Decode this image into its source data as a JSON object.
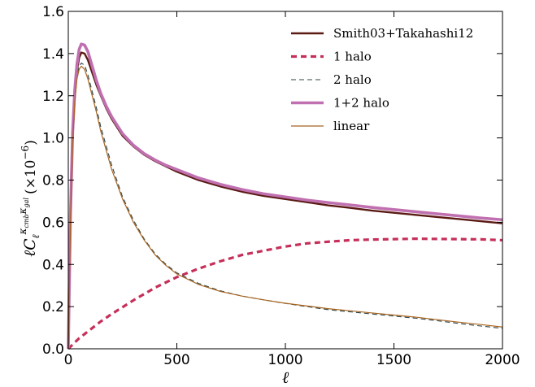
{
  "chart_data": {
    "type": "line",
    "xlabel": "ℓ",
    "ylabel": {
      "prefix": "ℓC",
      "subscript": "ℓ",
      "superscript": "κ",
      "sup_sub1": "cmb",
      "sup_mid": "κ",
      "sup_sub2": "gal",
      "suffix": "(×10",
      "exponent": "−6",
      "close": ")"
    },
    "xlim": [
      0,
      2000
    ],
    "ylim": [
      0.0,
      1.6
    ],
    "xticks": [
      0,
      500,
      1000,
      1500,
      2000
    ],
    "xtick_labels": [
      "0",
      "500",
      "1000",
      "1500",
      "2000"
    ],
    "yticks": [
      0.0,
      0.2,
      0.4,
      0.6,
      0.8,
      1.0,
      1.2,
      1.4,
      1.6
    ],
    "ytick_labels": [
      "0.0",
      "0.2",
      "0.4",
      "0.6",
      "0.8",
      "1.0",
      "1.2",
      "1.4",
      "1.6"
    ],
    "grid": false,
    "legend_position": "top-right",
    "series": [
      {
        "name": "Smith03+Takahashi12",
        "color": "#5a1a12",
        "style": "solid",
        "width": 2.4,
        "x": [
          0,
          10,
          20,
          30,
          40,
          50,
          60,
          75,
          90,
          110,
          130,
          150,
          175,
          200,
          250,
          300,
          350,
          400,
          450,
          500,
          600,
          700,
          800,
          900,
          1000,
          1100,
          1200,
          1300,
          1400,
          1500,
          1600,
          1700,
          1800,
          1900,
          2000
        ],
        "y": [
          0.0,
          0.62,
          1.0,
          1.2,
          1.32,
          1.38,
          1.405,
          1.4,
          1.37,
          1.31,
          1.25,
          1.2,
          1.14,
          1.09,
          1.01,
          0.96,
          0.92,
          0.89,
          0.865,
          0.84,
          0.8,
          0.77,
          0.745,
          0.725,
          0.71,
          0.695,
          0.68,
          0.668,
          0.655,
          0.645,
          0.635,
          0.625,
          0.615,
          0.605,
          0.595
        ]
      },
      {
        "name": "1 halo",
        "color": "#c62f59",
        "style": "dashed",
        "width": 3.2,
        "x": [
          0,
          20,
          50,
          100,
          150,
          200,
          300,
          400,
          500,
          600,
          700,
          800,
          900,
          1000,
          1100,
          1200,
          1300,
          1400,
          1500,
          1600,
          1700,
          1800,
          1900,
          2000
        ],
        "y": [
          0.0,
          0.02,
          0.05,
          0.09,
          0.13,
          0.165,
          0.23,
          0.29,
          0.34,
          0.38,
          0.415,
          0.445,
          0.465,
          0.485,
          0.5,
          0.508,
          0.515,
          0.518,
          0.52,
          0.522,
          0.521,
          0.52,
          0.519,
          0.515
        ]
      },
      {
        "name": "2 halo",
        "color": "#2c4444",
        "style": "dashed",
        "width": 1.1,
        "x": [
          0,
          10,
          20,
          30,
          40,
          50,
          60,
          75,
          90,
          110,
          130,
          150,
          175,
          200,
          250,
          300,
          350,
          400,
          450,
          500,
          600,
          700,
          800,
          900,
          1000,
          1100,
          1200,
          1300,
          1400,
          1500,
          1600,
          1700,
          1800,
          1900,
          2000
        ],
        "y": [
          0.0,
          0.6,
          0.98,
          1.18,
          1.29,
          1.34,
          1.355,
          1.345,
          1.3,
          1.22,
          1.14,
          1.05,
          0.96,
          0.87,
          0.72,
          0.61,
          0.52,
          0.45,
          0.4,
          0.36,
          0.31,
          0.275,
          0.25,
          0.232,
          0.215,
          0.2,
          0.185,
          0.175,
          0.165,
          0.155,
          0.145,
          0.133,
          0.12,
          0.108,
          0.097
        ]
      },
      {
        "name": "1+2 halo",
        "color": "#c070b0",
        "style": "solid",
        "width": 3.6,
        "x": [
          0,
          10,
          20,
          30,
          40,
          50,
          60,
          75,
          90,
          110,
          130,
          150,
          175,
          200,
          250,
          300,
          350,
          400,
          450,
          500,
          600,
          700,
          800,
          900,
          1000,
          1100,
          1200,
          1300,
          1400,
          1500,
          1600,
          1700,
          1800,
          1900,
          2000
        ],
        "y": [
          0.0,
          0.64,
          1.03,
          1.23,
          1.35,
          1.42,
          1.445,
          1.44,
          1.41,
          1.34,
          1.27,
          1.21,
          1.15,
          1.1,
          1.02,
          0.965,
          0.925,
          0.895,
          0.87,
          0.85,
          0.81,
          0.78,
          0.755,
          0.735,
          0.72,
          0.705,
          0.693,
          0.682,
          0.67,
          0.66,
          0.65,
          0.64,
          0.63,
          0.62,
          0.612
        ]
      },
      {
        "name": "linear",
        "color": "#a86520",
        "style": "solid",
        "width": 1.2,
        "x": [
          0,
          10,
          20,
          30,
          40,
          50,
          60,
          75,
          90,
          110,
          130,
          150,
          175,
          200,
          250,
          300,
          350,
          400,
          450,
          500,
          600,
          700,
          800,
          900,
          1000,
          1100,
          1200,
          1300,
          1400,
          1500,
          1600,
          1700,
          1800,
          1900,
          2000
        ],
        "y": [
          0.0,
          0.6,
          0.97,
          1.17,
          1.28,
          1.325,
          1.34,
          1.325,
          1.28,
          1.2,
          1.12,
          1.03,
          0.94,
          0.85,
          0.71,
          0.6,
          0.515,
          0.445,
          0.395,
          0.355,
          0.305,
          0.272,
          0.25,
          0.232,
          0.216,
          0.203,
          0.19,
          0.18,
          0.17,
          0.16,
          0.15,
          0.138,
          0.126,
          0.115,
          0.103
        ]
      }
    ]
  }
}
